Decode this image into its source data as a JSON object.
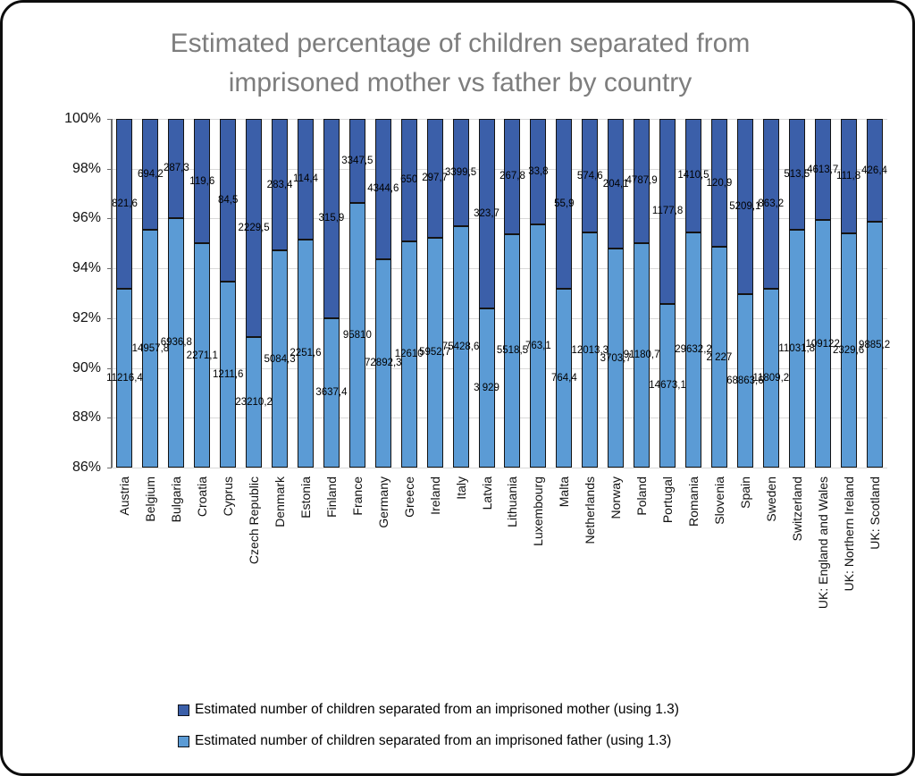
{
  "chart_data": {
    "type": "bar",
    "subtype": "stacked-100-percent",
    "title": "Estimated percentage of children separated from imprisoned mother vs father by country",
    "title_color": "#7d7d7d",
    "grid": true,
    "legend_position": "bottom",
    "y_axis": {
      "min": 86,
      "max": 100,
      "tick_step": 2,
      "tick_labels": [
        "86%",
        "88%",
        "90%",
        "92%",
        "94%",
        "96%",
        "98%",
        "100%"
      ]
    },
    "categories": [
      "Austria",
      "Belgium",
      "Bulgaria",
      "Croatia",
      "Cyprus",
      "Czech Republic",
      "Denmark",
      "Estonia",
      "Finland",
      "France",
      "Germany",
      "Greece",
      "Ireland",
      "Italy",
      "Latvia",
      "Lithuania",
      "Luxembourg",
      "Malta",
      "Netherlands",
      "Norway",
      "Poland",
      "Portugal",
      "Romania",
      "Slovenia",
      "Spain",
      "Sweden",
      "Switzerland",
      "UK: England and Wales",
      "UK: Northern Ireland",
      "UK: Scotland"
    ],
    "series": [
      {
        "name": "Estimated number of children separated from an imprisoned mother (using 1.3)",
        "color": "#3b5fa9",
        "stack_position": "top",
        "values": [
          821.6,
          694.2,
          287.3,
          119.6,
          84.5,
          2229.5,
          283.4,
          114.4,
          315.9,
          3347.5,
          4344.6,
          650,
          297.7,
          3399.5,
          323.7,
          267.8,
          33.8,
          55.9,
          574.6,
          204.1,
          4787.9,
          1177.8,
          1410.5,
          120.9,
          5209.1,
          863.2,
          513.5,
          4613.7,
          111.8,
          426.4
        ],
        "labels": [
          "821,6",
          "694,2",
          "287,3",
          "119,6",
          "84,5",
          "2229,5",
          "283,4",
          "114,4",
          "315,9",
          "3347,5",
          "4344,6",
          "650",
          "297,7",
          "3399,5",
          "323,7",
          "267,8",
          "33,8",
          "55,9",
          "574,6",
          "204,1",
          "4787,9",
          "1177,8",
          "1410,5",
          "120,9",
          "5209,1",
          "863,2",
          "513,5",
          "4613,7",
          "111,8",
          "426,4"
        ]
      },
      {
        "name": "Estimated number of children separated from an imprisoned father (using 1.3)",
        "color": "#5b9bd5",
        "stack_position": "bottom",
        "values": [
          11216.4,
          14957.8,
          6936.8,
          2271.1,
          1211.6,
          23210.2,
          5084.3,
          2251.6,
          3637.4,
          95810,
          72892.3,
          12610,
          5952.7,
          75428.6,
          3929,
          5518.5,
          763.1,
          764.4,
          12013.3,
          3703.7,
          91180.7,
          14673.1,
          29632.2,
          2227,
          68863.6,
          11809.2,
          11031.8,
          109122,
          2329.6,
          9885.2
        ],
        "labels": [
          "11216,4",
          "14957,8",
          "6936,8",
          "2271,1",
          "1211,6",
          "23210,2",
          "5084,3",
          "2251,6",
          "3637,4",
          "95810",
          "72892,3",
          "12610",
          "5952,7",
          "75428,6",
          "3 929",
          "5518,5",
          "763,1",
          "764,4",
          "12013,3",
          "3703,7",
          "91180,7",
          "14673,1",
          "29632,2",
          "2 227",
          "68863,6",
          "11809,2",
          "11031,8",
          "109122",
          "2329,6",
          "9885,2"
        ]
      }
    ]
  }
}
